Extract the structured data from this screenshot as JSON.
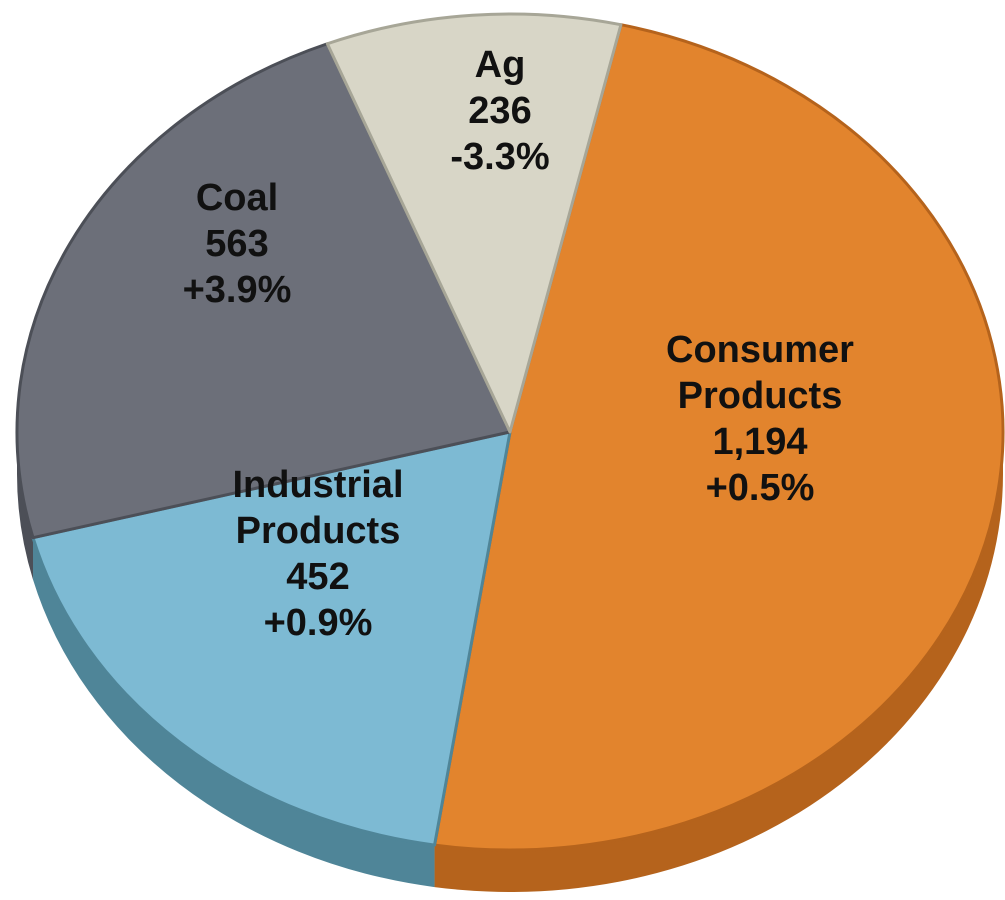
{
  "chart_data": {
    "type": "pie",
    "title": "",
    "slices": [
      {
        "name": "Consumer Products",
        "label_lines": [
          "Consumer",
          "Products"
        ],
        "value": 1194,
        "value_label": "1,194",
        "change": "+0.5%",
        "color": "#E2842D",
        "side_color": "#B5631C"
      },
      {
        "name": "Industrial Products",
        "label_lines": [
          "Industrial",
          "Products"
        ],
        "value": 452,
        "value_label": "452",
        "change": "+0.9%",
        "color": "#7DBAD3",
        "side_color": "#4F8598"
      },
      {
        "name": "Coal",
        "label_lines": [
          "Coal"
        ],
        "value": 563,
        "value_label": "563",
        "change": "+3.9%",
        "color": "#6C6F79",
        "side_color": "#4C4F57"
      },
      {
        "name": "Ag",
        "label_lines": [
          "Ag"
        ],
        "value": 236,
        "value_label": "236",
        "change": "-3.3%",
        "color": "#D8D6C7",
        "side_color": "#A7A697"
      }
    ],
    "start_angle_deg": -77,
    "direction": "clockwise",
    "style": "3d-tilted",
    "legend": "none"
  }
}
